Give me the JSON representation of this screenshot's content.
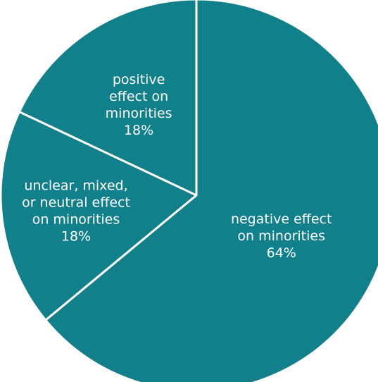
{
  "chart_data": {
    "type": "pie",
    "start_angle_deg": 0,
    "direction": "clockwise",
    "color": "#12808a",
    "separator_color": "#ffffff",
    "slices": [
      {
        "lines": [
          "negative effect",
          "on minorities"
        ],
        "percent_label": "64%",
        "value": 64
      },
      {
        "lines": [
          "unclear, mixed,",
          "or neutral effect",
          "on minorities"
        ],
        "percent_label": "18%",
        "value": 18
      },
      {
        "lines": [
          "positive",
          "effect on",
          "minorities"
        ],
        "percent_label": "18%",
        "value": 18
      }
    ]
  }
}
